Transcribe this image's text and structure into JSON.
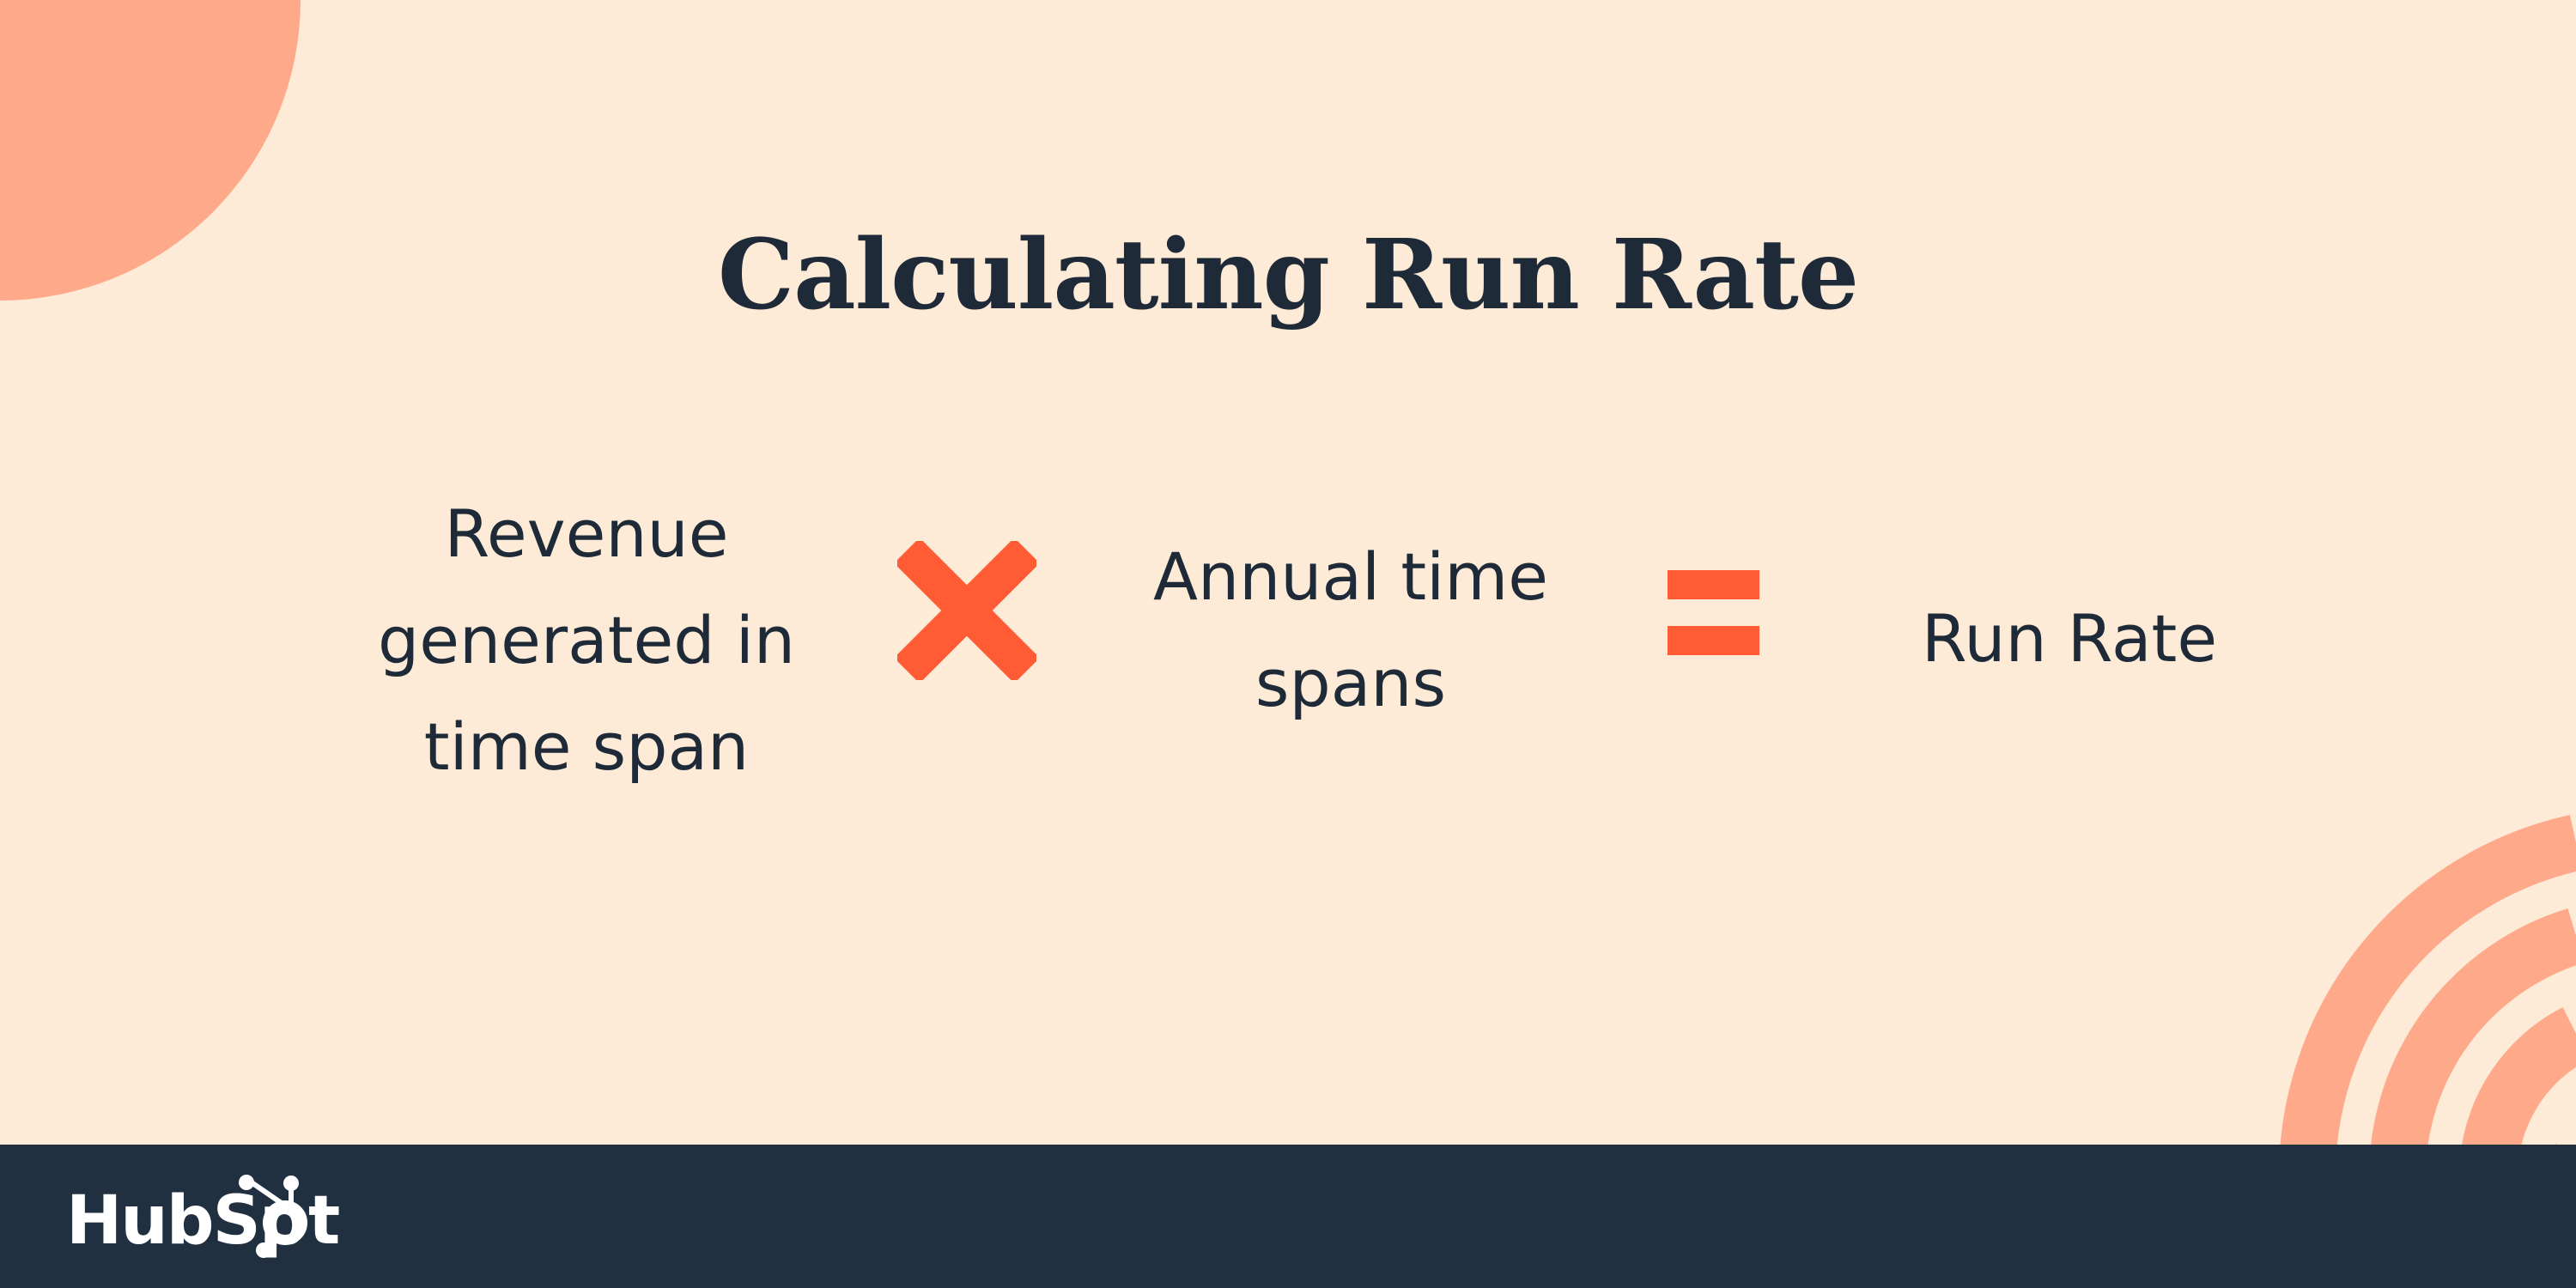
{
  "title": "Calculating Run Rate",
  "formula": {
    "term1": [
      "Revenue",
      "generated in",
      "time span"
    ],
    "operator1": "multiply-icon",
    "term2": [
      "Annual time",
      "spans"
    ],
    "operator2": "equals-icon",
    "result": "Run Rate"
  },
  "footer": {
    "logo": "HubSpot"
  },
  "colors": {
    "background": "#FDEBD8",
    "accent": "#FF5C35",
    "decoration": "#FDA98A",
    "footer": "#213041",
    "text": "#1E2A37"
  }
}
